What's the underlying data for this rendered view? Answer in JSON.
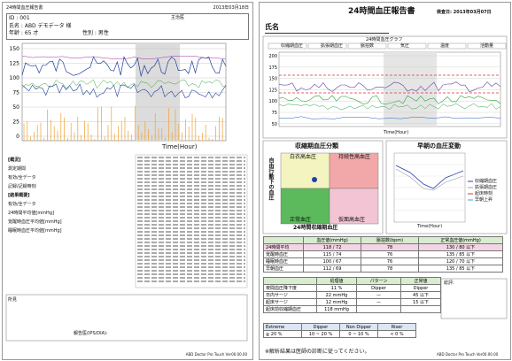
{
  "left": {
    "header": {
      "title": "24時間血圧報告書",
      "date": "2013年03月18日"
    },
    "patient": {
      "id": "ID : 001",
      "doctor": "主治医",
      "name": "氏名 : ABD デモデータ 様",
      "age": "年齢 : 65 才",
      "sex": "性別 : 男性"
    },
    "chart": {
      "yticks": [
        "150",
        "125",
        "100",
        "75",
        "50",
        "25",
        "0"
      ],
      "xlabel": "Time(Hour)"
    },
    "summary": [
      "[概況]",
      "測定期間",
      "有効/全データ",
      "記録/記録時刻",
      "[結果概要]",
      "有効/全データ",
      "24時間平均値[mmHg]",
      "覚醒時血圧平均値[mmHg]",
      "睡眠時血圧平均値[mmHg]"
    ],
    "remarks": "所見",
    "reporter": "報告医(IPS/DIA):",
    "footer": "ABD Doctor Pro Touch Ver00.00.00"
  },
  "right": {
    "title": "24時間血圧報告書",
    "date": "検査日: 2013年03月07日",
    "name": "氏名",
    "chart": {
      "title": "24時間血圧グラフ",
      "legend": [
        "収縮期血圧",
        "拡張期血圧",
        "脈拍数",
        "気圧",
        "温度",
        "活動量"
      ],
      "yticks": [
        "200",
        "175",
        "150",
        "125",
        "100",
        "75",
        "50"
      ],
      "xlabel": "Time(Hour)"
    },
    "classify": {
      "title": "収縮期血圧分類",
      "ylabel": "自由行動下の血圧",
      "xlabel": "24時間収縮期血圧",
      "quadrants": [
        "白衣高血圧",
        "持続性高血圧",
        "正常血圧",
        "仮面高血圧"
      ]
    },
    "morning": {
      "title": "早朝の血圧変動",
      "xlabel": "Time(Hour)",
      "legend": [
        "収縮期血圧",
        "拡張期血圧",
        "起床時刻",
        "早朝上昇"
      ]
    },
    "table1": {
      "header": [
        "",
        "血圧値(mmHg)",
        "脈拍数(bpm)",
        "正常血圧値(mmHg)"
      ],
      "rows": [
        [
          "24時間平均",
          "118 / 72",
          "78",
          "130 / 80 以下"
        ],
        [
          "覚醒時血圧",
          "115 / 74",
          "76",
          "135 / 85 以下"
        ],
        [
          "睡眠時血圧",
          "100 / 67",
          "76",
          "120 / 70 以下"
        ],
        [
          "早朝血圧",
          "112 / 69",
          "78",
          "135 / 85 以下"
        ]
      ]
    },
    "table2": {
      "header": [
        "",
        "処理値",
        "パターン",
        "正常値"
      ],
      "rows": [
        [
          "夜間血圧降下度",
          "11 %",
          "Dipper",
          "Dipper"
        ],
        [
          "日内サージ",
          "22 mmHg",
          "—",
          "45 以下"
        ],
        [
          "起床サージ",
          "12 mmHg",
          "—",
          "15 以下"
        ],
        [
          "起床前収縮期血圧",
          "118 mmHg",
          "",
          ""
        ]
      ]
    },
    "comment": "総評:",
    "table3": {
      "header": [
        "Extreme",
        "Dipper",
        "Non Dipper",
        "Riser"
      ],
      "row": [
        "≧ 20 %",
        "10 ~ 20 %",
        "0 ~ 10 %",
        "< 0 %"
      ]
    },
    "note": "※解析結果は医師の診断に従ってください。",
    "footer": "ABD Doctor Pro Touch Ver00.00.00"
  }
}
